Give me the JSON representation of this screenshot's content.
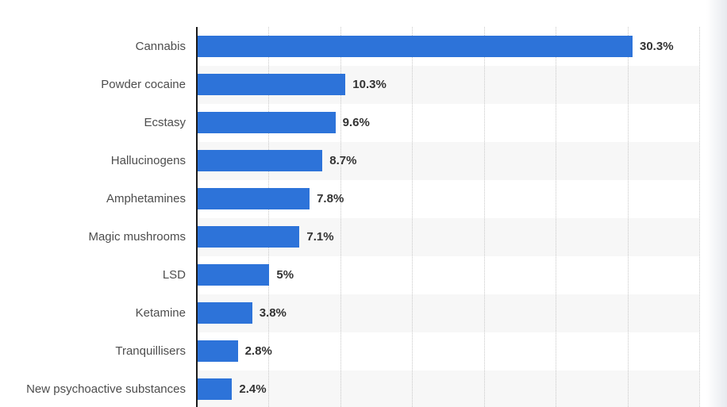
{
  "chart_data": {
    "type": "bar",
    "orientation": "horizontal",
    "title": "",
    "xlabel": "",
    "ylabel": "",
    "categories": [
      "Cannabis",
      "Powder cocaine",
      "Ecstasy",
      "Hallucinogens",
      "Amphetamines",
      "Magic mushrooms",
      "LSD",
      "Ketamine",
      "Tranquillisers",
      "New psychoactive substances"
    ],
    "values": [
      30.3,
      10.3,
      9.6,
      8.7,
      7.8,
      7.1,
      5,
      3.8,
      2.8,
      2.4
    ],
    "value_labels": [
      "30.3%",
      "10.3%",
      "9.6%",
      "8.7%",
      "7.8%",
      "7.1%",
      "5%",
      "3.8%",
      "2.8%",
      "2.4%"
    ],
    "xlim": [
      0,
      35
    ],
    "tick_step": 5,
    "grid": "dotted-vertical",
    "legend": "none",
    "bar_color": "#2d73d9",
    "band_color": "#f7f7f7",
    "axis_color": "#1a1a1a",
    "value_label_color": "#333333",
    "category_label_color": "#4d4d4d"
  }
}
